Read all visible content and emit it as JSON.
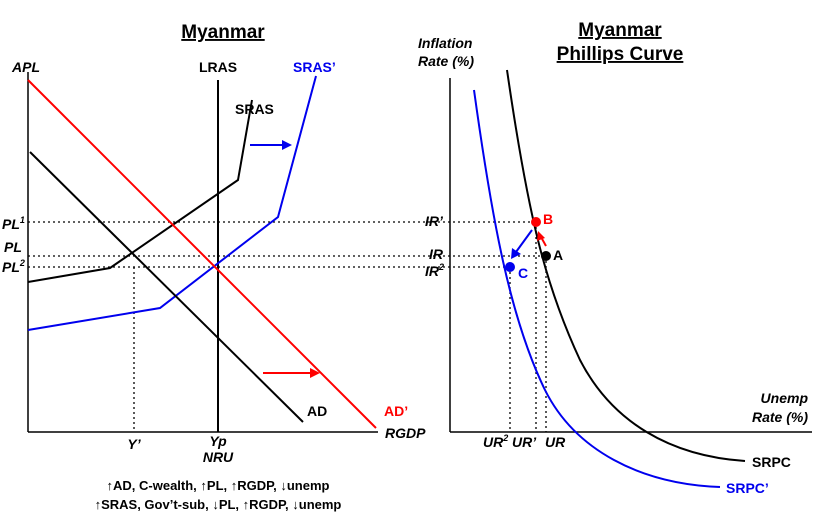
{
  "left_panel": {
    "title": "Myanmar",
    "y_axis_label": "APL",
    "x_axis_label": "RGDP",
    "curves": {
      "lras": "LRAS",
      "sras": "SRAS",
      "sras_new": "SRAS’",
      "ad": "AD",
      "ad_new": "AD’"
    },
    "y_ticks": {
      "pl1": "PL",
      "pl1_sup": "1",
      "pl": "PL",
      "pl2": "PL",
      "pl2_sup": "2"
    },
    "x_ticks": {
      "y_prime": "Y’",
      "yp": "Yp",
      "nru": "NRU"
    },
    "notes": [
      "↑AD, C-wealth, ↑PL, ↑RGDP, ↓unemp",
      "↑SRAS, Gov’t-sub, ↓PL, ↑RGDP, ↓unemp"
    ]
  },
  "right_panel": {
    "title_line1": "Myanmar",
    "title_line2": "Phillips Curve",
    "y_axis_label_line1": "Inflation",
    "y_axis_label_line2": "Rate (%)",
    "x_axis_label_line1": "Unemp",
    "x_axis_label_line2": "Rate (%)",
    "curves": {
      "srpc": "SRPC",
      "srpc_new": "SRPC’"
    },
    "y_ticks": {
      "ir_prime": "IR’",
      "ir": "IR",
      "ir2": "IR",
      "ir2_sup": "2"
    },
    "x_ticks": {
      "ur2": "UR",
      "ur2_sup": "2",
      "ur_prime": "UR’",
      "ur": "UR"
    },
    "points": {
      "a": "A",
      "b": "B",
      "c": "C"
    }
  },
  "colors": {
    "black": "#000000",
    "red": "#ff0000",
    "blue": "#0000ee"
  }
}
